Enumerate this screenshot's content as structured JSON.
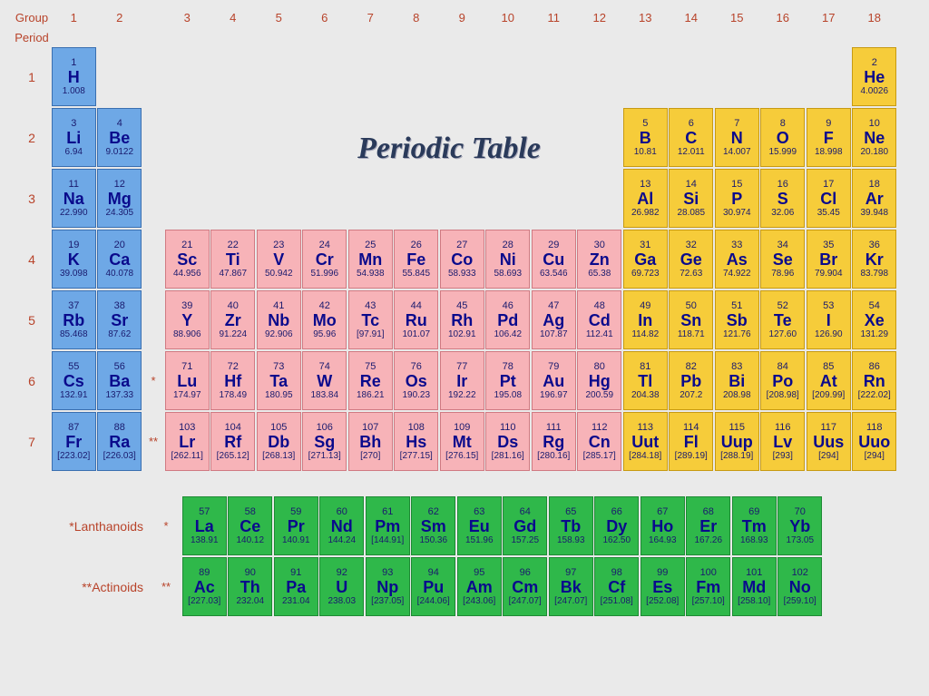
{
  "title": "Periodic Table",
  "header": {
    "group_label": "Group",
    "period_label": "Period",
    "groups": [
      "1",
      "2",
      "3",
      "4",
      "5",
      "6",
      "7",
      "8",
      "9",
      "10",
      "11",
      "12",
      "13",
      "14",
      "15",
      "16",
      "17",
      "18"
    ]
  },
  "colors": {
    "blue": {
      "bg": "#6ea8e6",
      "border": "#3a6fb0"
    },
    "yellow": {
      "bg": "#f6cc3a",
      "border": "#c79a12"
    },
    "pink": {
      "bg": "#f7b3b8",
      "border": "#d07a82"
    },
    "green": {
      "bg": "#2fb84a",
      "border": "#1e8a34"
    }
  },
  "label_color": "#b8432a",
  "periods": [
    {
      "num": "1",
      "note": "",
      "cells": [
        {
          "z": "1",
          "s": "H",
          "m": "1.008",
          "c": "blue"
        },
        null,
        null,
        null,
        null,
        null,
        null,
        null,
        null,
        null,
        null,
        null,
        null,
        null,
        null,
        null,
        null,
        {
          "z": "2",
          "s": "He",
          "m": "4.0026",
          "c": "yellow"
        }
      ]
    },
    {
      "num": "2",
      "note": "",
      "cells": [
        {
          "z": "3",
          "s": "Li",
          "m": "6.94",
          "c": "blue"
        },
        {
          "z": "4",
          "s": "Be",
          "m": "9.0122",
          "c": "blue"
        },
        null,
        null,
        null,
        null,
        null,
        null,
        null,
        null,
        null,
        null,
        {
          "z": "5",
          "s": "B",
          "m": "10.81",
          "c": "yellow"
        },
        {
          "z": "6",
          "s": "C",
          "m": "12.011",
          "c": "yellow"
        },
        {
          "z": "7",
          "s": "N",
          "m": "14.007",
          "c": "yellow"
        },
        {
          "z": "8",
          "s": "O",
          "m": "15.999",
          "c": "yellow"
        },
        {
          "z": "9",
          "s": "F",
          "m": "18.998",
          "c": "yellow"
        },
        {
          "z": "10",
          "s": "Ne",
          "m": "20.180",
          "c": "yellow"
        }
      ]
    },
    {
      "num": "3",
      "note": "",
      "cells": [
        {
          "z": "11",
          "s": "Na",
          "m": "22.990",
          "c": "blue"
        },
        {
          "z": "12",
          "s": "Mg",
          "m": "24.305",
          "c": "blue"
        },
        null,
        null,
        null,
        null,
        null,
        null,
        null,
        null,
        null,
        null,
        {
          "z": "13",
          "s": "Al",
          "m": "26.982",
          "c": "yellow"
        },
        {
          "z": "14",
          "s": "Si",
          "m": "28.085",
          "c": "yellow"
        },
        {
          "z": "15",
          "s": "P",
          "m": "30.974",
          "c": "yellow"
        },
        {
          "z": "16",
          "s": "S",
          "m": "32.06",
          "c": "yellow"
        },
        {
          "z": "17",
          "s": "Cl",
          "m": "35.45",
          "c": "yellow"
        },
        {
          "z": "18",
          "s": "Ar",
          "m": "39.948",
          "c": "yellow"
        }
      ]
    },
    {
      "num": "4",
      "note": "",
      "cells": [
        {
          "z": "19",
          "s": "K",
          "m": "39.098",
          "c": "blue"
        },
        {
          "z": "20",
          "s": "Ca",
          "m": "40.078",
          "c": "blue"
        },
        {
          "z": "21",
          "s": "Sc",
          "m": "44.956",
          "c": "pink"
        },
        {
          "z": "22",
          "s": "Ti",
          "m": "47.867",
          "c": "pink"
        },
        {
          "z": "23",
          "s": "V",
          "m": "50.942",
          "c": "pink"
        },
        {
          "z": "24",
          "s": "Cr",
          "m": "51.996",
          "c": "pink"
        },
        {
          "z": "25",
          "s": "Mn",
          "m": "54.938",
          "c": "pink"
        },
        {
          "z": "26",
          "s": "Fe",
          "m": "55.845",
          "c": "pink"
        },
        {
          "z": "27",
          "s": "Co",
          "m": "58.933",
          "c": "pink"
        },
        {
          "z": "28",
          "s": "Ni",
          "m": "58.693",
          "c": "pink"
        },
        {
          "z": "29",
          "s": "Cu",
          "m": "63.546",
          "c": "pink"
        },
        {
          "z": "30",
          "s": "Zn",
          "m": "65.38",
          "c": "pink"
        },
        {
          "z": "31",
          "s": "Ga",
          "m": "69.723",
          "c": "yellow"
        },
        {
          "z": "32",
          "s": "Ge",
          "m": "72.63",
          "c": "yellow"
        },
        {
          "z": "33",
          "s": "As",
          "m": "74.922",
          "c": "yellow"
        },
        {
          "z": "34",
          "s": "Se",
          "m": "78.96",
          "c": "yellow"
        },
        {
          "z": "35",
          "s": "Br",
          "m": "79.904",
          "c": "yellow"
        },
        {
          "z": "36",
          "s": "Kr",
          "m": "83.798",
          "c": "yellow"
        }
      ]
    },
    {
      "num": "5",
      "note": "",
      "cells": [
        {
          "z": "37",
          "s": "Rb",
          "m": "85.468",
          "c": "blue"
        },
        {
          "z": "38",
          "s": "Sr",
          "m": "87.62",
          "c": "blue"
        },
        {
          "z": "39",
          "s": "Y",
          "m": "88.906",
          "c": "pink"
        },
        {
          "z": "40",
          "s": "Zr",
          "m": "91.224",
          "c": "pink"
        },
        {
          "z": "41",
          "s": "Nb",
          "m": "92.906",
          "c": "pink"
        },
        {
          "z": "42",
          "s": "Mo",
          "m": "95.96",
          "c": "pink"
        },
        {
          "z": "43",
          "s": "Tc",
          "m": "[97.91]",
          "c": "pink"
        },
        {
          "z": "44",
          "s": "Ru",
          "m": "101.07",
          "c": "pink"
        },
        {
          "z": "45",
          "s": "Rh",
          "m": "102.91",
          "c": "pink"
        },
        {
          "z": "46",
          "s": "Pd",
          "m": "106.42",
          "c": "pink"
        },
        {
          "z": "47",
          "s": "Ag",
          "m": "107.87",
          "c": "pink"
        },
        {
          "z": "48",
          "s": "Cd",
          "m": "112.41",
          "c": "pink"
        },
        {
          "z": "49",
          "s": "In",
          "m": "114.82",
          "c": "yellow"
        },
        {
          "z": "50",
          "s": "Sn",
          "m": "118.71",
          "c": "yellow"
        },
        {
          "z": "51",
          "s": "Sb",
          "m": "121.76",
          "c": "yellow"
        },
        {
          "z": "52",
          "s": "Te",
          "m": "127.60",
          "c": "yellow"
        },
        {
          "z": "53",
          "s": "I",
          "m": "126.90",
          "c": "yellow"
        },
        {
          "z": "54",
          "s": "Xe",
          "m": "131.29",
          "c": "yellow"
        }
      ]
    },
    {
      "num": "6",
      "note": "*",
      "cells": [
        {
          "z": "55",
          "s": "Cs",
          "m": "132.91",
          "c": "blue"
        },
        {
          "z": "56",
          "s": "Ba",
          "m": "137.33",
          "c": "blue"
        },
        {
          "z": "71",
          "s": "Lu",
          "m": "174.97",
          "c": "pink"
        },
        {
          "z": "72",
          "s": "Hf",
          "m": "178.49",
          "c": "pink"
        },
        {
          "z": "73",
          "s": "Ta",
          "m": "180.95",
          "c": "pink"
        },
        {
          "z": "74",
          "s": "W",
          "m": "183.84",
          "c": "pink"
        },
        {
          "z": "75",
          "s": "Re",
          "m": "186.21",
          "c": "pink"
        },
        {
          "z": "76",
          "s": "Os",
          "m": "190.23",
          "c": "pink"
        },
        {
          "z": "77",
          "s": "Ir",
          "m": "192.22",
          "c": "pink"
        },
        {
          "z": "78",
          "s": "Pt",
          "m": "195.08",
          "c": "pink"
        },
        {
          "z": "79",
          "s": "Au",
          "m": "196.97",
          "c": "pink"
        },
        {
          "z": "80",
          "s": "Hg",
          "m": "200.59",
          "c": "pink"
        },
        {
          "z": "81",
          "s": "Tl",
          "m": "204.38",
          "c": "yellow"
        },
        {
          "z": "82",
          "s": "Pb",
          "m": "207.2",
          "c": "yellow"
        },
        {
          "z": "83",
          "s": "Bi",
          "m": "208.98",
          "c": "yellow"
        },
        {
          "z": "84",
          "s": "Po",
          "m": "[208.98]",
          "c": "yellow"
        },
        {
          "z": "85",
          "s": "At",
          "m": "[209.99]",
          "c": "yellow"
        },
        {
          "z": "86",
          "s": "Rn",
          "m": "[222.02]",
          "c": "yellow"
        }
      ]
    },
    {
      "num": "7",
      "note": "**",
      "cells": [
        {
          "z": "87",
          "s": "Fr",
          "m": "[223.02]",
          "c": "blue"
        },
        {
          "z": "88",
          "s": "Ra",
          "m": "[226.03]",
          "c": "blue"
        },
        {
          "z": "103",
          "s": "Lr",
          "m": "[262.11]",
          "c": "pink"
        },
        {
          "z": "104",
          "s": "Rf",
          "m": "[265.12]",
          "c": "pink"
        },
        {
          "z": "105",
          "s": "Db",
          "m": "[268.13]",
          "c": "pink"
        },
        {
          "z": "106",
          "s": "Sg",
          "m": "[271.13]",
          "c": "pink"
        },
        {
          "z": "107",
          "s": "Bh",
          "m": "[270]",
          "c": "pink"
        },
        {
          "z": "108",
          "s": "Hs",
          "m": "[277.15]",
          "c": "pink"
        },
        {
          "z": "109",
          "s": "Mt",
          "m": "[276.15]",
          "c": "pink"
        },
        {
          "z": "110",
          "s": "Ds",
          "m": "[281.16]",
          "c": "pink"
        },
        {
          "z": "111",
          "s": "Rg",
          "m": "[280.16]",
          "c": "pink"
        },
        {
          "z": "112",
          "s": "Cn",
          "m": "[285.17]",
          "c": "pink"
        },
        {
          "z": "113",
          "s": "Uut",
          "m": "[284.18]",
          "c": "yellow"
        },
        {
          "z": "114",
          "s": "Fl",
          "m": "[289.19]",
          "c": "yellow"
        },
        {
          "z": "115",
          "s": "Uup",
          "m": "[288.19]",
          "c": "yellow"
        },
        {
          "z": "116",
          "s": "Lv",
          "m": "[293]",
          "c": "yellow"
        },
        {
          "z": "117",
          "s": "Uus",
          "m": "[294]",
          "c": "yellow"
        },
        {
          "z": "118",
          "s": "Uuo",
          "m": "[294]",
          "c": "yellow"
        }
      ]
    }
  ],
  "lanthanoids": {
    "label": "*Lanthanoids",
    "note": "*",
    "cells": [
      {
        "z": "57",
        "s": "La",
        "m": "138.91",
        "c": "green"
      },
      {
        "z": "58",
        "s": "Ce",
        "m": "140.12",
        "c": "green"
      },
      {
        "z": "59",
        "s": "Pr",
        "m": "140.91",
        "c": "green"
      },
      {
        "z": "60",
        "s": "Nd",
        "m": "144.24",
        "c": "green"
      },
      {
        "z": "61",
        "s": "Pm",
        "m": "[144.91]",
        "c": "green"
      },
      {
        "z": "62",
        "s": "Sm",
        "m": "150.36",
        "c": "green"
      },
      {
        "z": "63",
        "s": "Eu",
        "m": "151.96",
        "c": "green"
      },
      {
        "z": "64",
        "s": "Gd",
        "m": "157.25",
        "c": "green"
      },
      {
        "z": "65",
        "s": "Tb",
        "m": "158.93",
        "c": "green"
      },
      {
        "z": "66",
        "s": "Dy",
        "m": "162.50",
        "c": "green"
      },
      {
        "z": "67",
        "s": "Ho",
        "m": "164.93",
        "c": "green"
      },
      {
        "z": "68",
        "s": "Er",
        "m": "167.26",
        "c": "green"
      },
      {
        "z": "69",
        "s": "Tm",
        "m": "168.93",
        "c": "green"
      },
      {
        "z": "70",
        "s": "Yb",
        "m": "173.05",
        "c": "green"
      }
    ]
  },
  "actinoids": {
    "label": "**Actinoids",
    "note": "**",
    "cells": [
      {
        "z": "89",
        "s": "Ac",
        "m": "[227.03]",
        "c": "green"
      },
      {
        "z": "90",
        "s": "Th",
        "m": "232.04",
        "c": "green"
      },
      {
        "z": "91",
        "s": "Pa",
        "m": "231.04",
        "c": "green"
      },
      {
        "z": "92",
        "s": "U",
        "m": "238.03",
        "c": "green"
      },
      {
        "z": "93",
        "s": "Np",
        "m": "[237.05]",
        "c": "green"
      },
      {
        "z": "94",
        "s": "Pu",
        "m": "[244.06]",
        "c": "green"
      },
      {
        "z": "95",
        "s": "Am",
        "m": "[243.06]",
        "c": "green"
      },
      {
        "z": "96",
        "s": "Cm",
        "m": "[247.07]",
        "c": "green"
      },
      {
        "z": "97",
        "s": "Bk",
        "m": "[247.07]",
        "c": "green"
      },
      {
        "z": "98",
        "s": "Cf",
        "m": "[251.08]",
        "c": "green"
      },
      {
        "z": "99",
        "s": "Es",
        "m": "[252.08]",
        "c": "green"
      },
      {
        "z": "100",
        "s": "Fm",
        "m": "[257.10]",
        "c": "green"
      },
      {
        "z": "101",
        "s": "Md",
        "m": "[258.10]",
        "c": "green"
      },
      {
        "z": "102",
        "s": "No",
        "m": "[259.10]",
        "c": "green"
      }
    ]
  }
}
